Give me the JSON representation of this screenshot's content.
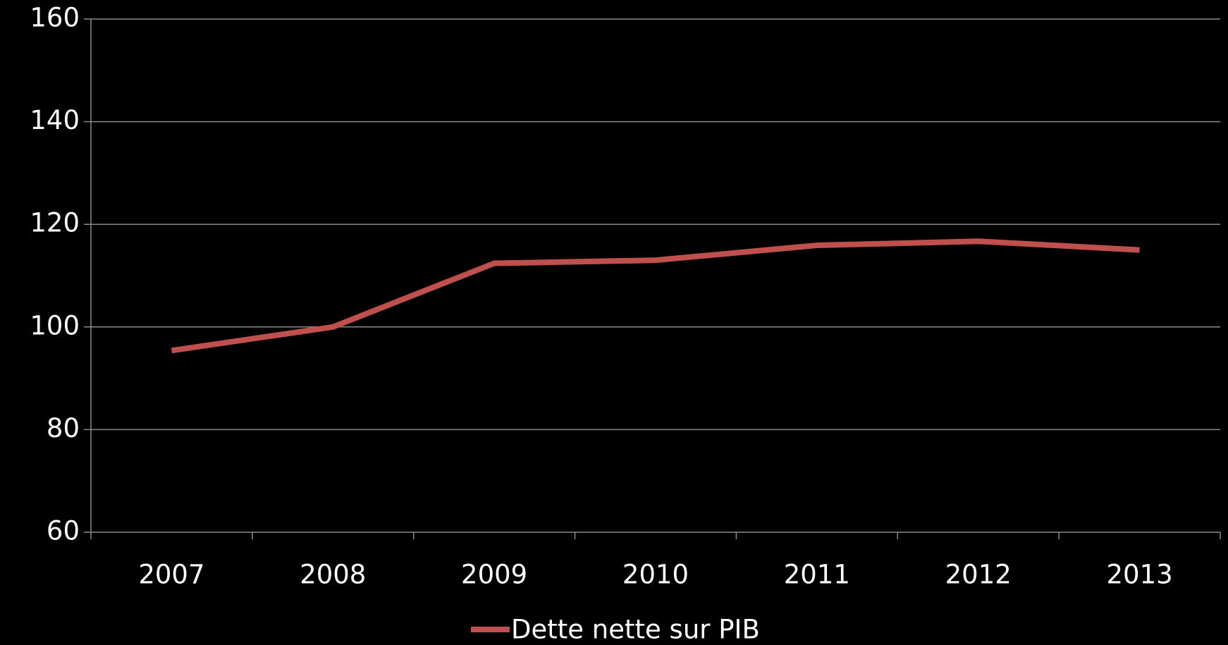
{
  "chart_data": {
    "type": "line",
    "categories": [
      "2007",
      "2008",
      "2009",
      "2010",
      "2011",
      "2012",
      "2013"
    ],
    "series": [
      {
        "name": "Dette nette sur PIB",
        "color": "#c0504d",
        "values": [
          95.4,
          100,
          112.4,
          113,
          115.9,
          116.7,
          115
        ]
      }
    ],
    "ylim": [
      60,
      160
    ],
    "yticks": [
      60,
      80,
      100,
      120,
      140,
      160
    ],
    "grid": true,
    "legend": "bottom"
  }
}
